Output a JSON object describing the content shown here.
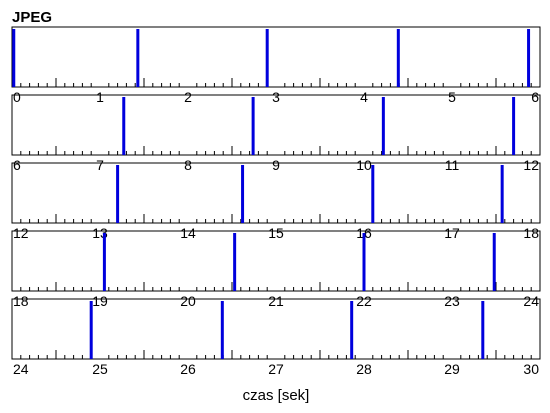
{
  "chart_data": {
    "type": "bar",
    "title": "JPEG",
    "xlabel": "czas [sek]",
    "ylabel": "",
    "xlim": [
      0,
      30
    ],
    "seconds_per_row": 6,
    "grid": false,
    "legend": "none",
    "bar_color": "#0000dd",
    "tick_color": "#000000",
    "rows": [
      {
        "xlim": [
          0,
          6
        ],
        "tick_labels": [
          "0",
          "1",
          "2",
          "3",
          "4",
          "5",
          "6"
        ]
      },
      {
        "xlim": [
          6,
          12
        ],
        "tick_labels": [
          "6",
          "7",
          "8",
          "9",
          "10",
          "11",
          "12"
        ]
      },
      {
        "xlim": [
          12,
          18
        ],
        "tick_labels": [
          "12",
          "13",
          "14",
          "15",
          "16",
          "17",
          "18"
        ]
      },
      {
        "xlim": [
          18,
          24
        ],
        "tick_labels": [
          "18",
          "19",
          "20",
          "21",
          "22",
          "23",
          "24"
        ]
      },
      {
        "xlim": [
          24,
          30
        ],
        "tick_labels": [
          "24",
          "25",
          "26",
          "27",
          "28",
          "29",
          "30"
        ]
      }
    ],
    "events": [
      0.02,
      1.43,
      2.9,
      4.39,
      5.87,
      7.27,
      8.74,
      10.22,
      11.7,
      13.2,
      14.62,
      16.1,
      17.57,
      19.05,
      20.53,
      22.0,
      23.48,
      24.9,
      26.39,
      27.86,
      29.35
    ]
  }
}
